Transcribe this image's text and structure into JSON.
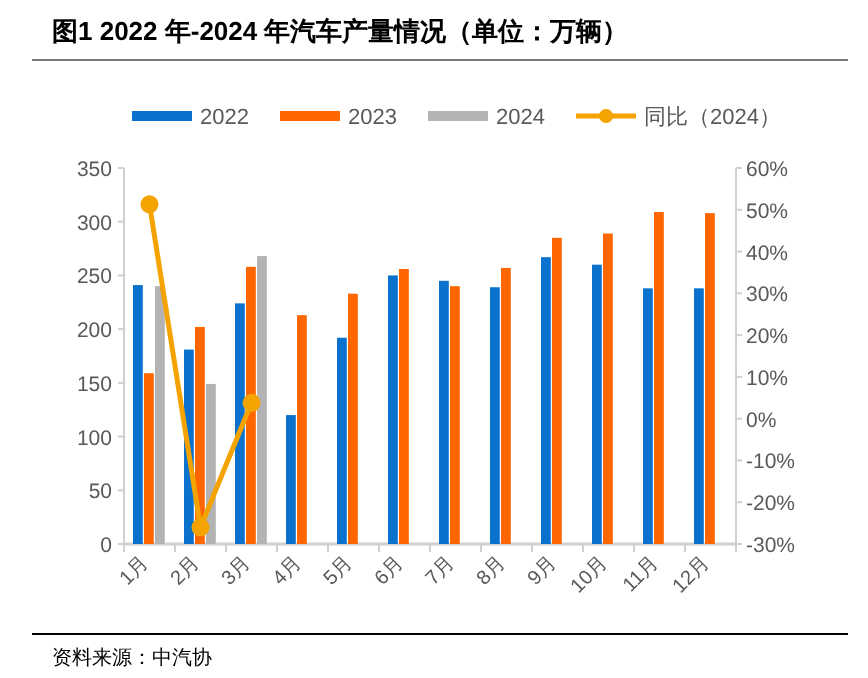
{
  "chart_data": {
    "type": "bar",
    "title": "图1  2022 年-2024 年汽车产量情况（单位：万辆）",
    "categories": [
      "1月",
      "2月",
      "3月",
      "4月",
      "5月",
      "6月",
      "7月",
      "8月",
      "9月",
      "10月",
      "11月",
      "12月"
    ],
    "series": [
      {
        "name": "2022",
        "color": "#0a72cc",
        "values": [
          241,
          181,
          224,
          120,
          192,
          250,
          245,
          239,
          267,
          260,
          238,
          238
        ]
      },
      {
        "name": "2023",
        "color": "#ff6600",
        "values": [
          159,
          202,
          258,
          213,
          233,
          256,
          240,
          257,
          285,
          289,
          309,
          308
        ]
      },
      {
        "name": "2024",
        "color": "#b3b3b3",
        "values": [
          240,
          149,
          268,
          null,
          null,
          null,
          null,
          null,
          null,
          null,
          null,
          null
        ]
      },
      {
        "name": "同比（2024）",
        "type": "line",
        "axis": "y2",
        "color": "#f5a300",
        "marker": "circle",
        "values": [
          51.3,
          -26,
          3.8,
          null,
          null,
          null,
          null,
          null,
          null,
          null,
          null,
          null
        ]
      }
    ],
    "ylim": [
      0,
      350
    ],
    "yticks": [
      0,
      50,
      100,
      150,
      200,
      250,
      300,
      350
    ],
    "y2lim": [
      -30,
      60
    ],
    "y2ticks": [
      {
        "value": -30,
        "label": "-30%"
      },
      {
        "value": -20,
        "label": "-20%"
      },
      {
        "value": -10,
        "label": "-10%"
      },
      {
        "value": 0,
        "label": "0%"
      },
      {
        "value": 10,
        "label": "10%"
      },
      {
        "value": 20,
        "label": "20%"
      },
      {
        "value": 30,
        "label": "30%"
      },
      {
        "value": 40,
        "label": "40%"
      },
      {
        "value": 50,
        "label": "50%"
      },
      {
        "value": 60,
        "label": "60%"
      }
    ],
    "grid": false,
    "legend": "top",
    "annotations": [
      "资料来源：中汽协"
    ]
  }
}
